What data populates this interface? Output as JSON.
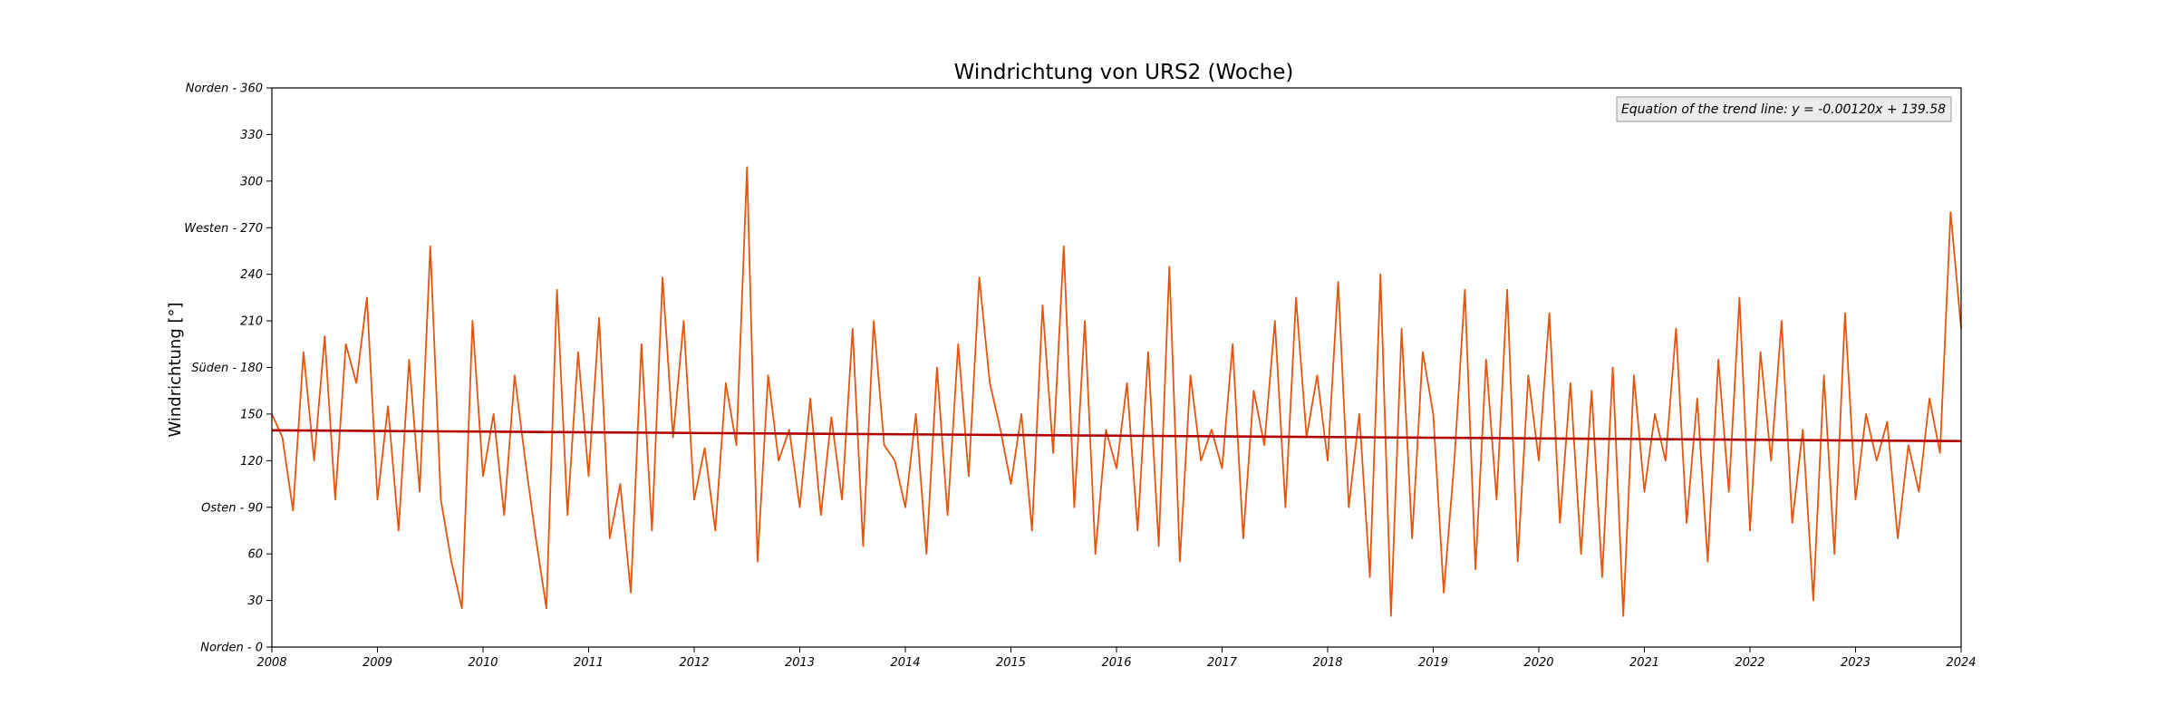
{
  "chart_data": {
    "type": "line",
    "title": "Windrichtung von URS2 (Woche)",
    "xlabel": "",
    "ylabel": "Windrichtung [°]",
    "xlim": [
      2008,
      2024
    ],
    "ylim": [
      0,
      360
    ],
    "x_ticks": [
      "2008",
      "2009",
      "2010",
      "2011",
      "2012",
      "2013",
      "2014",
      "2015",
      "2016",
      "2017",
      "2018",
      "2019",
      "2020",
      "2021",
      "2022",
      "2023",
      "2024"
    ],
    "y_ticks": [
      {
        "value": 0,
        "label": "Norden - 0"
      },
      {
        "value": 30,
        "label": "30"
      },
      {
        "value": 60,
        "label": "60"
      },
      {
        "value": 90,
        "label": "Osten - 90"
      },
      {
        "value": 120,
        "label": "120"
      },
      {
        "value": 150,
        "label": "150"
      },
      {
        "value": 180,
        "label": "Süden - 180"
      },
      {
        "value": 210,
        "label": "210"
      },
      {
        "value": 240,
        "label": "240"
      },
      {
        "value": 270,
        "label": "Westen - 270"
      },
      {
        "value": 300,
        "label": "300"
      },
      {
        "value": 330,
        "label": "330"
      },
      {
        "value": 360,
        "label": "Norden - 360"
      }
    ],
    "annotation": "Equation of the trend line: y = -0.00120x + 139.58",
    "grid": false,
    "series": [
      {
        "color": "#e6550d",
        "x": [
          2008.0,
          2008.1,
          2008.2,
          2008.3,
          2008.4,
          2008.5,
          2008.6,
          2008.7,
          2008.8,
          2008.9,
          2009.0,
          2009.1,
          2009.2,
          2009.3,
          2009.4,
          2009.5,
          2009.6,
          2009.7,
          2009.8,
          2009.9,
          2010.0,
          2010.1,
          2010.2,
          2010.3,
          2010.4,
          2010.5,
          2010.6,
          2010.7,
          2010.8,
          2010.9,
          2011.0,
          2011.1,
          2011.2,
          2011.3,
          2011.4,
          2011.5,
          2011.6,
          2011.7,
          2011.8,
          2011.9,
          2012.0,
          2012.1,
          2012.2,
          2012.3,
          2012.4,
          2012.5,
          2012.6,
          2012.7,
          2012.8,
          2012.9,
          2013.0,
          2013.1,
          2013.2,
          2013.3,
          2013.4,
          2013.5,
          2013.6,
          2013.7,
          2013.8,
          2013.9,
          2014.0,
          2014.1,
          2014.2,
          2014.3,
          2014.4,
          2014.5,
          2014.6,
          2014.7,
          2014.8,
          2014.9,
          2015.0,
          2015.1,
          2015.2,
          2015.3,
          2015.4,
          2015.5,
          2015.6,
          2015.7,
          2015.8,
          2015.9,
          2016.0,
          2016.1,
          2016.2,
          2016.3,
          2016.4,
          2016.5,
          2016.6,
          2016.7,
          2016.8,
          2016.9,
          2017.0,
          2017.1,
          2017.2,
          2017.3,
          2017.4,
          2017.5,
          2017.6,
          2017.7,
          2017.8,
          2017.9,
          2018.0,
          2018.1,
          2018.2,
          2018.3,
          2018.4,
          2018.5,
          2018.6,
          2018.7,
          2018.8,
          2018.9,
          2019.0,
          2019.1,
          2019.2,
          2019.3,
          2019.4,
          2019.5,
          2019.6,
          2019.7,
          2019.8,
          2019.9,
          2020.0,
          2020.1,
          2020.2,
          2020.3,
          2020.4,
          2020.5,
          2020.6,
          2020.7,
          2020.8,
          2020.9,
          2021.0,
          2021.1,
          2021.2,
          2021.3,
          2021.4,
          2021.5,
          2021.6,
          2021.7,
          2021.8,
          2021.9,
          2022.0,
          2022.1,
          2022.2,
          2022.3,
          2022.4,
          2022.5,
          2022.6,
          2022.7,
          2022.8,
          2022.9,
          2023.0,
          2023.1,
          2023.2,
          2023.3,
          2023.4,
          2023.5,
          2023.6,
          2023.7,
          2023.8,
          2023.9,
          2024.0
        ],
        "values": [
          150,
          135,
          88,
          190,
          120,
          200,
          95,
          195,
          170,
          225,
          95,
          155,
          75,
          185,
          100,
          258,
          95,
          55,
          25,
          210,
          110,
          150,
          85,
          175,
          120,
          70,
          25,
          230,
          85,
          190,
          110,
          212,
          70,
          105,
          35,
          195,
          75,
          238,
          135,
          210,
          95,
          128,
          75,
          170,
          130,
          309,
          55,
          175,
          120,
          140,
          90,
          160,
          85,
          148,
          95,
          205,
          65,
          210,
          130,
          120,
          90,
          150,
          60,
          180,
          85,
          195,
          110,
          238,
          170,
          140,
          105,
          150,
          75,
          220,
          125,
          258,
          90,
          210,
          60,
          140,
          115,
          170,
          75,
          190,
          65,
          245,
          55,
          175,
          120,
          140,
          115,
          195,
          70,
          165,
          130,
          210,
          90,
          225,
          135,
          175,
          120,
          235,
          90,
          150,
          45,
          240,
          20,
          205,
          70,
          190,
          150,
          35,
          120,
          230,
          50,
          185,
          95,
          230,
          55,
          175,
          120,
          215,
          80,
          170,
          60,
          165,
          45,
          180,
          20,
          175,
          100,
          150,
          120,
          205,
          80,
          160,
          55,
          185,
          100,
          225,
          75,
          190,
          120,
          210,
          80,
          140,
          30,
          175,
          60,
          215,
          95,
          150,
          120,
          145,
          70,
          130,
          100,
          160,
          125,
          280,
          205
        ],
        "trend": {
          "slope": -0.0012,
          "intercept": 139.58,
          "start": 139.58,
          "end": 132.6,
          "color": "#b30000"
        }
      }
    ]
  }
}
